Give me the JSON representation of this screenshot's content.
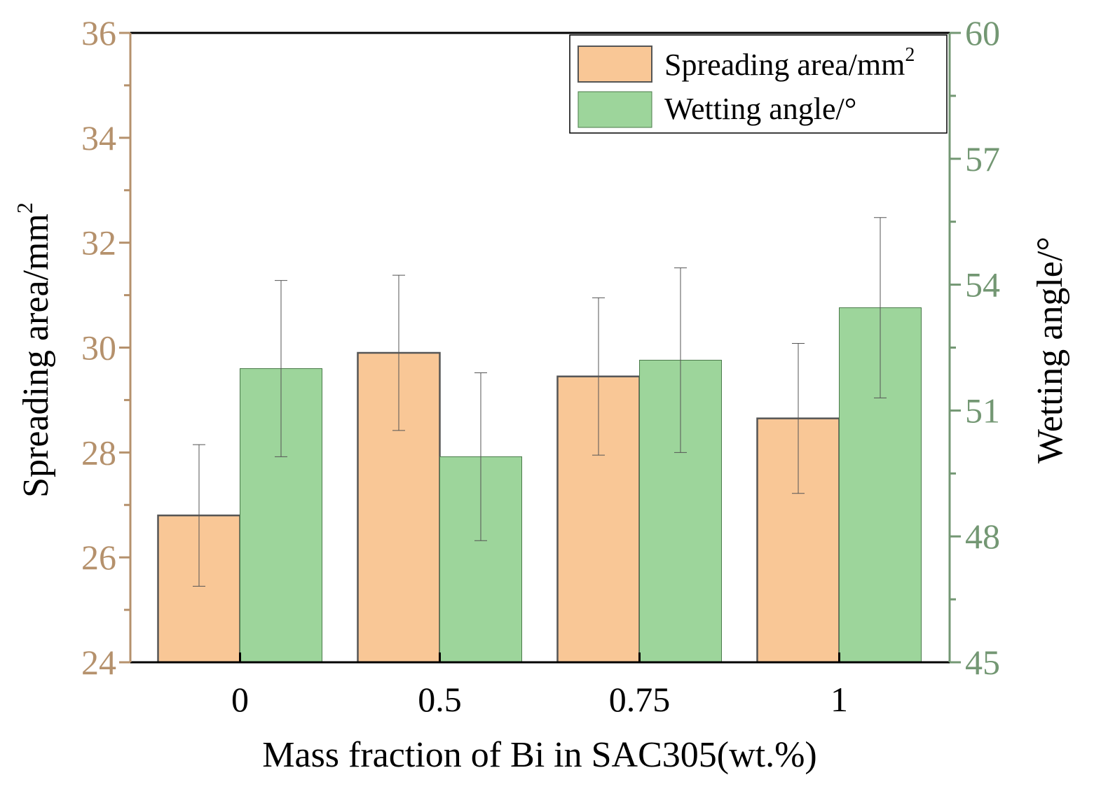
{
  "chart_data": {
    "type": "bar",
    "title": "",
    "categories": [
      "0",
      "0.5",
      "0.75",
      "1"
    ],
    "xlabel": "Mass fraction of Bi in SAC305(wt.%)",
    "ylabel_left": {
      "text": "Spreading area/mm",
      "sup": "2"
    },
    "ylabel_right": "Wetting angle/°",
    "ylim_left": [
      24,
      36
    ],
    "ylim_right": [
      45,
      60
    ],
    "left_ticks": [
      "24",
      "26",
      "28",
      "30",
      "32",
      "34",
      "36"
    ],
    "right_ticks": [
      "45",
      "48",
      "51",
      "54",
      "57",
      "60"
    ],
    "left_axis_color": "#b5916c",
    "right_axis_color": "#739773",
    "legend_position": "top-right",
    "series": [
      {
        "name": "Spreading area/mm",
        "sup": "2",
        "axis": "left",
        "color": "#f9c796",
        "edge": "#555555",
        "values": [
          26.8,
          29.9,
          29.45,
          28.65
        ],
        "errors": [
          1.35,
          1.48,
          1.5,
          1.43
        ]
      },
      {
        "name": "Wetting angle/°",
        "sup": "",
        "axis": "right",
        "color": "#9dd59b",
        "edge": "#4a7a4a",
        "values": [
          52.0,
          49.9,
          52.2,
          53.45
        ],
        "errors": [
          2.1,
          2.0,
          2.2,
          2.15
        ]
      }
    ]
  }
}
